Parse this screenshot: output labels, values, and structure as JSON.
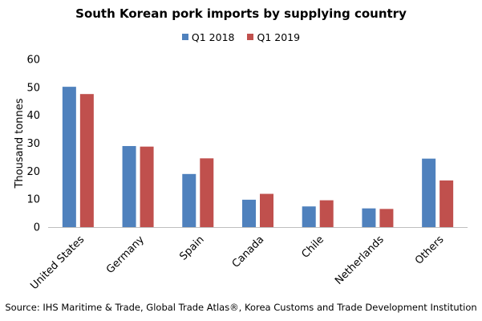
{
  "chart_data": {
    "type": "bar",
    "title": "South Korean pork imports by supplying country",
    "ylabel": "Thousand tonnes",
    "xlabel": "",
    "ylim": [
      0,
      60
    ],
    "yticks": [
      0,
      10,
      20,
      30,
      40,
      50,
      60
    ],
    "grid": false,
    "legend_position": "top",
    "categories": [
      "United States",
      "Germany",
      "Spain",
      "Canada",
      "Chile",
      "Netherlands",
      "Others"
    ],
    "series": [
      {
        "name": "Q1 2018",
        "color": "#4F81BD",
        "values": [
          50.2,
          29.0,
          19.0,
          9.8,
          7.4,
          6.7,
          24.5
        ]
      },
      {
        "name": "Q1 2019",
        "color": "#C0504D",
        "values": [
          47.6,
          28.8,
          24.6,
          11.9,
          9.6,
          6.5,
          16.7
        ]
      }
    ],
    "source": "Source: IHS Maritime & Trade, Global Trade Atlas®, Korea Customs and Trade Development Institution"
  }
}
